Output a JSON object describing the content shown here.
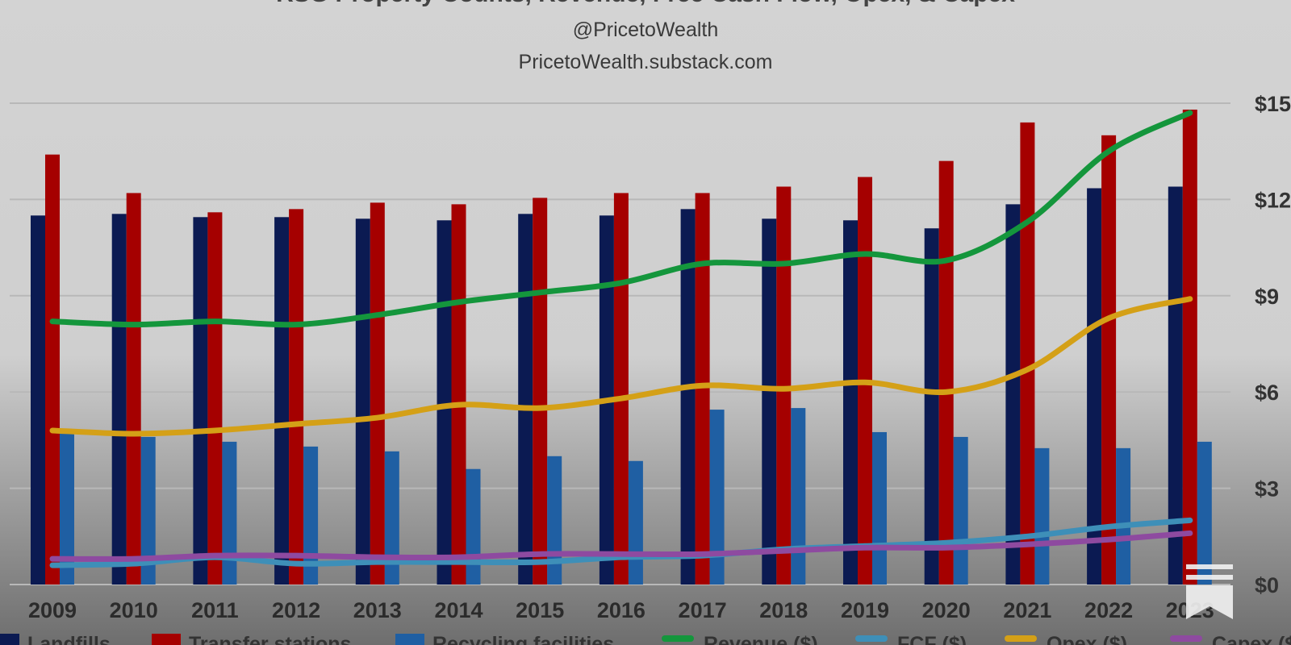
{
  "chart_data": {
    "type": "bar",
    "title": "RSG Property Counts, Revenue, Free Cash Flow, Opex, & Capex",
    "subtitle_handle": "@PricetoWealth",
    "subtitle_site": "PricetoWealth.substack.com",
    "categories": [
      "2009",
      "2010",
      "2011",
      "2012",
      "2013",
      "2014",
      "2015",
      "2016",
      "2017",
      "2018",
      "2019",
      "2020",
      "2021",
      "2022",
      "2023"
    ],
    "bar_series": [
      {
        "name": "Landfills",
        "color": "#0b1a52",
        "values": [
          11.5,
          11.55,
          11.45,
          11.45,
          11.4,
          11.35,
          11.55,
          11.5,
          11.7,
          11.4,
          11.35,
          11.1,
          11.85,
          12.35,
          12.4
        ]
      },
      {
        "name": "Transfer stations",
        "color": "#a50000",
        "values": [
          13.4,
          12.2,
          11.6,
          11.7,
          11.9,
          11.85,
          12.05,
          12.2,
          12.2,
          12.4,
          12.7,
          13.2,
          14.4,
          14.0,
          14.8
        ]
      },
      {
        "name": "Recycling facilities",
        "color": "#1f5fa3",
        "values": [
          4.7,
          4.6,
          4.45,
          4.3,
          4.15,
          3.6,
          4.0,
          3.85,
          5.45,
          5.5,
          4.75,
          4.6,
          4.25,
          4.25,
          4.45
        ]
      }
    ],
    "line_series": [
      {
        "name": "Revenue ($)",
        "color": "#14963c",
        "values": [
          8.2,
          8.1,
          8.2,
          8.1,
          8.4,
          8.8,
          9.1,
          9.4,
          10.0,
          10.0,
          10.3,
          10.1,
          11.3,
          13.5,
          14.7
        ]
      },
      {
        "name": "FCF ($)",
        "color": "#3e8fb8",
        "values": [
          0.6,
          0.65,
          0.85,
          0.65,
          0.7,
          0.7,
          0.7,
          0.85,
          0.9,
          1.1,
          1.2,
          1.3,
          1.5,
          1.8,
          2.0
        ]
      },
      {
        "name": "Opex ($)",
        "color": "#d4a017",
        "values": [
          4.8,
          4.7,
          4.8,
          5.0,
          5.2,
          5.6,
          5.5,
          5.8,
          6.2,
          6.1,
          6.3,
          6.0,
          6.7,
          8.3,
          8.9
        ]
      },
      {
        "name": "Capex ($)",
        "color": "#8e4aa0",
        "values": [
          0.8,
          0.8,
          0.9,
          0.9,
          0.85,
          0.85,
          0.95,
          0.95,
          0.95,
          1.05,
          1.15,
          1.15,
          1.25,
          1.4,
          1.6
        ]
      }
    ],
    "y_axis": {
      "position": "right",
      "ylim": [
        0,
        15
      ],
      "ticks": [
        "$0",
        "$3",
        "$6",
        "$9",
        "$12",
        "$15"
      ],
      "tick_values": [
        0,
        3,
        6,
        9,
        12,
        15
      ]
    },
    "grid": true,
    "legend": {
      "placement": "bottom",
      "labels": [
        "Landfills",
        "Transfer stations",
        "Recycling facilities",
        "Revenue ($)",
        "FCF ($)",
        "Opex ($)",
        "Capex ($)"
      ]
    }
  },
  "icons": {
    "watermark": "substack-logo-icon"
  }
}
